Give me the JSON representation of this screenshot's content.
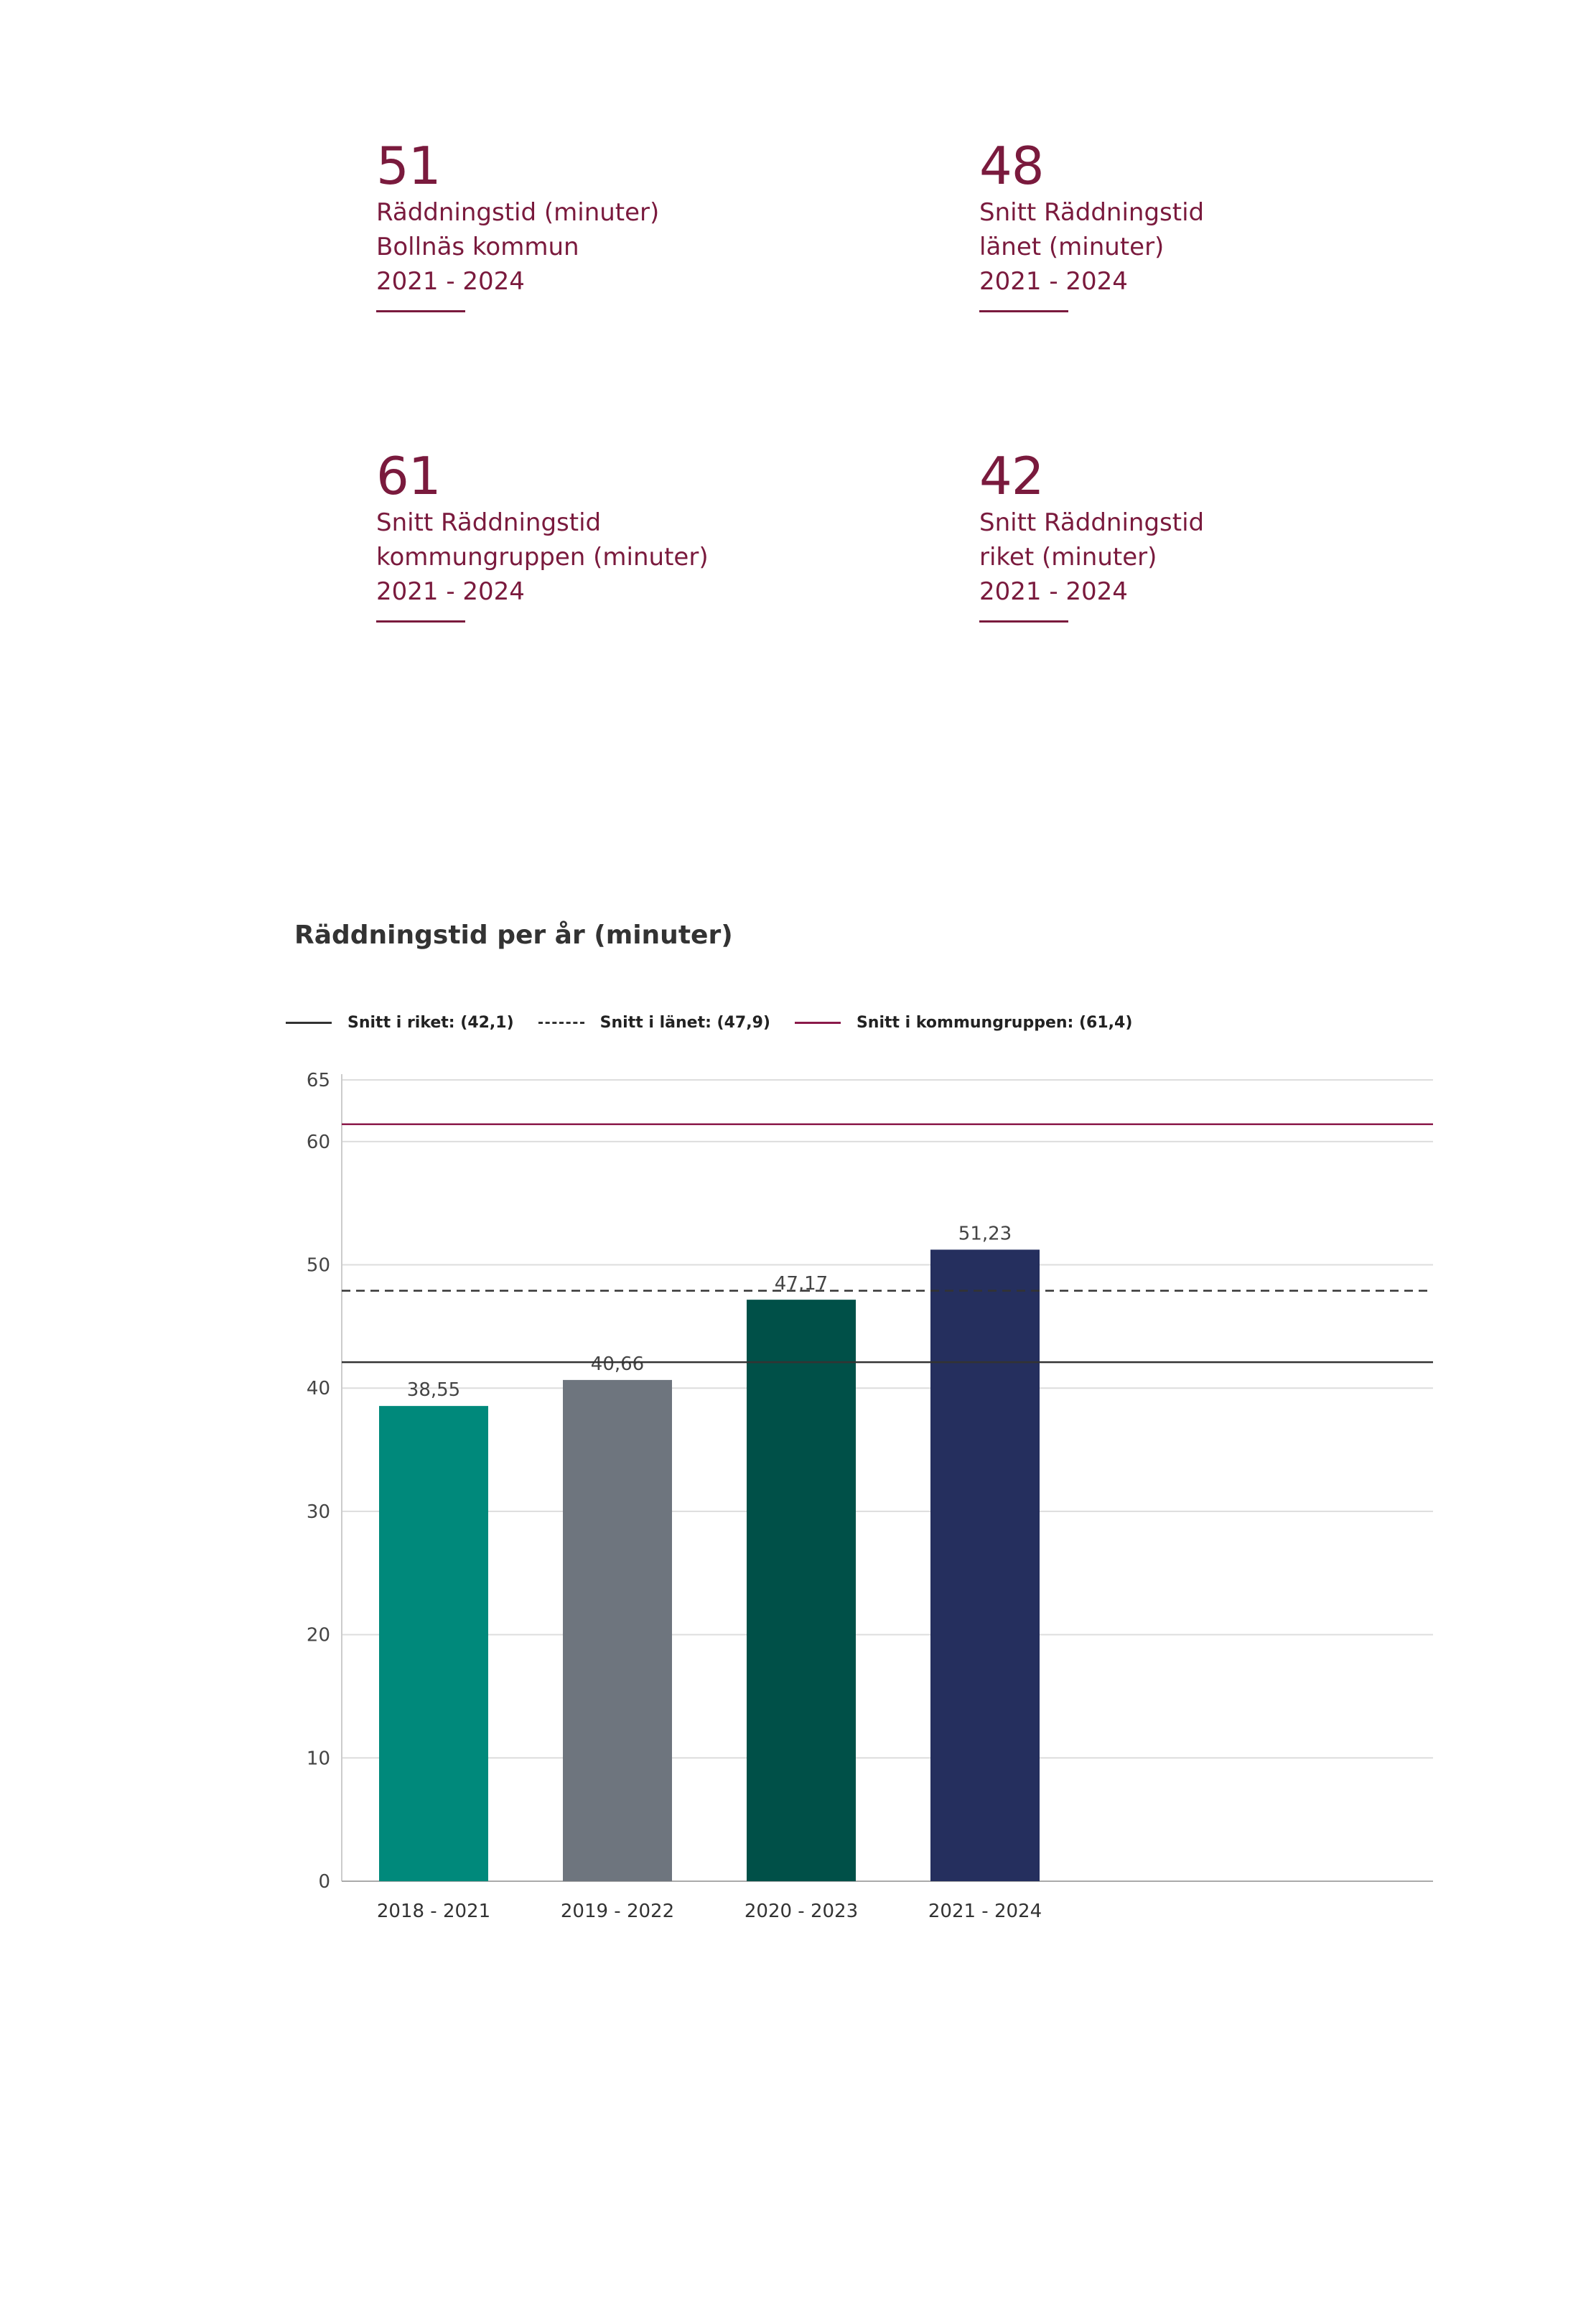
{
  "kpis": [
    {
      "value": "51",
      "lines": [
        "Räddningstid (minuter)",
        "Bollnäs kommun",
        "2021 - 2024"
      ]
    },
    {
      "value": "48",
      "lines": [
        "Snitt Räddningstid",
        "länet (minuter)",
        "2021 - 2024"
      ]
    },
    {
      "value": "61",
      "lines": [
        "Snitt Räddningstid",
        "kommungruppen (minuter)",
        "2021 - 2024"
      ]
    },
    {
      "value": "42",
      "lines": [
        "Snitt Räddningstid",
        "riket (minuter)",
        "2021 - 2024"
      ]
    }
  ],
  "colors": {
    "accent": "#7a1a3d",
    "bars": [
      "#00897b",
      "#6e757e",
      "#005048",
      "#252f5e"
    ],
    "line_riket": "#333333",
    "line_lanet": "#333333",
    "line_kommungruppen": "#8b1a4a",
    "grid": "#dddddd"
  },
  "chart_data": {
    "type": "bar",
    "title": "Räddningstid per år (minuter)",
    "categories": [
      "2018 - 2021",
      "2019 - 2022",
      "2020 - 2023",
      "2021 - 2024"
    ],
    "values": [
      38.55,
      40.66,
      47.17,
      51.23
    ],
    "value_labels": [
      "38,55",
      "40,66",
      "47,17",
      "51,23"
    ],
    "xlabel": "",
    "ylabel": "",
    "ylim": [
      0,
      65
    ],
    "yticks": [
      0,
      10,
      20,
      30,
      40,
      50,
      60,
      65
    ],
    "grid": true,
    "legend_position": "top-left",
    "reference_lines": [
      {
        "name": "Snitt i riket: (42,1)",
        "value": 42.1,
        "style": "solid"
      },
      {
        "name": "Snitt i länet: (47,9)",
        "value": 47.9,
        "style": "dashed"
      },
      {
        "name": "Snitt i kommungruppen: (61,4)",
        "value": 61.4,
        "style": "solid"
      }
    ]
  }
}
